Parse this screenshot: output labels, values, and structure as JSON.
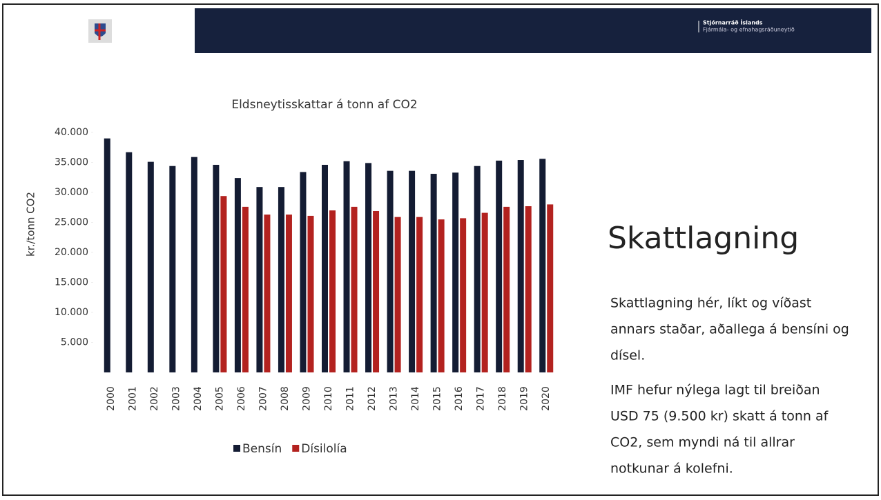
{
  "header": {
    "org": "Stjórnarráð Íslands",
    "ministry": "Fjármála- og efnahagsráðuneytið"
  },
  "chart_data": {
    "type": "bar",
    "title": "Eldsneytisskattar á tonn af CO2",
    "y_label": "kr./tonn CO2",
    "categories": [
      "2000",
      "2001",
      "2002",
      "2003",
      "2004",
      "2005",
      "2006",
      "2007",
      "2008",
      "2009",
      "2010",
      "2011",
      "2012",
      "2013",
      "2014",
      "2015",
      "2016",
      "2017",
      "2018",
      "2019",
      "2020"
    ],
    "series": [
      {
        "name": "Bensín",
        "color": "#141c33",
        "values": [
          39000,
          36700,
          35100,
          34400,
          35900,
          34600,
          32400,
          30900,
          30900,
          33400,
          34600,
          35200,
          34900,
          33600,
          33600,
          33100,
          33300,
          34400,
          35300,
          35400,
          35600
        ]
      },
      {
        "name": "Dísilolía",
        "color": "#b3221f",
        "values": [
          null,
          null,
          null,
          null,
          null,
          29400,
          27600,
          26300,
          26300,
          26100,
          27000,
          27600,
          26900,
          25900,
          25900,
          25500,
          25700,
          26600,
          27600,
          27700,
          28000
        ]
      }
    ],
    "ylim": [
      0,
      40000
    ],
    "yticks": [
      {
        "value": 5000,
        "label": "5.000"
      },
      {
        "value": 10000,
        "label": "10.000"
      },
      {
        "value": 15000,
        "label": "15.000"
      },
      {
        "value": 20000,
        "label": "20.000"
      },
      {
        "value": 25000,
        "label": "25.000"
      },
      {
        "value": 30000,
        "label": "30.000"
      },
      {
        "value": 35000,
        "label": "35.000"
      },
      {
        "value": 40000,
        "label": "40.000"
      }
    ],
    "legend": "bottom"
  },
  "slide_title": "Skattlagning",
  "paragraphs": [
    [
      "Skattlagning hér, líkt og  víðast",
      "annars staðar, aðallega á bensíni og",
      "dísel."
    ],
    [
      "IMF hefur nýlega lagt til breiðan",
      "USD 75 (9.500 kr) skatt á tonn af",
      "CO2, sem myndi ná til allrar",
      "notkunar á kolefni."
    ]
  ]
}
